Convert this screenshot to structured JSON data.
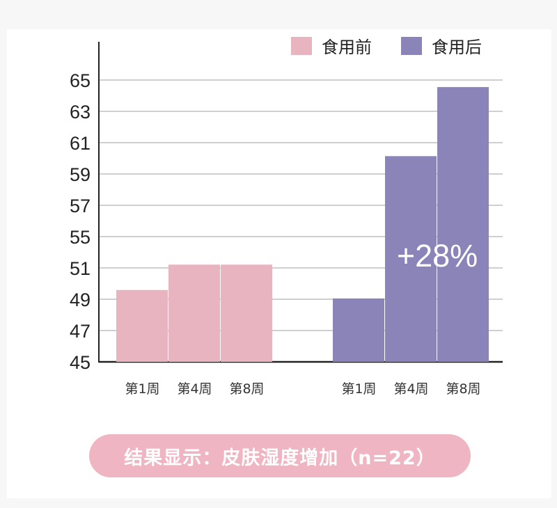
{
  "chart_data": {
    "type": "bar",
    "groups": [
      {
        "name": "食用前",
        "color": "#e8b4bf",
        "categories": [
          "第1周",
          "第4周",
          "第8周"
        ],
        "values": [
          50.1,
          51.9,
          51.9
        ]
      },
      {
        "name": "食用后",
        "color": "#8b84b8",
        "categories": [
          "第1周",
          "第4周",
          "第8周"
        ],
        "values": [
          49.5,
          59.6,
          64.5
        ]
      }
    ],
    "y_tick_labels": [
      "45",
      "47",
      "49",
      "51",
      "55",
      "57",
      "59",
      "61",
      "63",
      "65"
    ],
    "ylim": [
      45,
      65
    ],
    "grid": true,
    "legend_position": "top-right",
    "annotation": "+28%"
  },
  "caption": "结果显示：皮肤湿度增加（n=22）"
}
